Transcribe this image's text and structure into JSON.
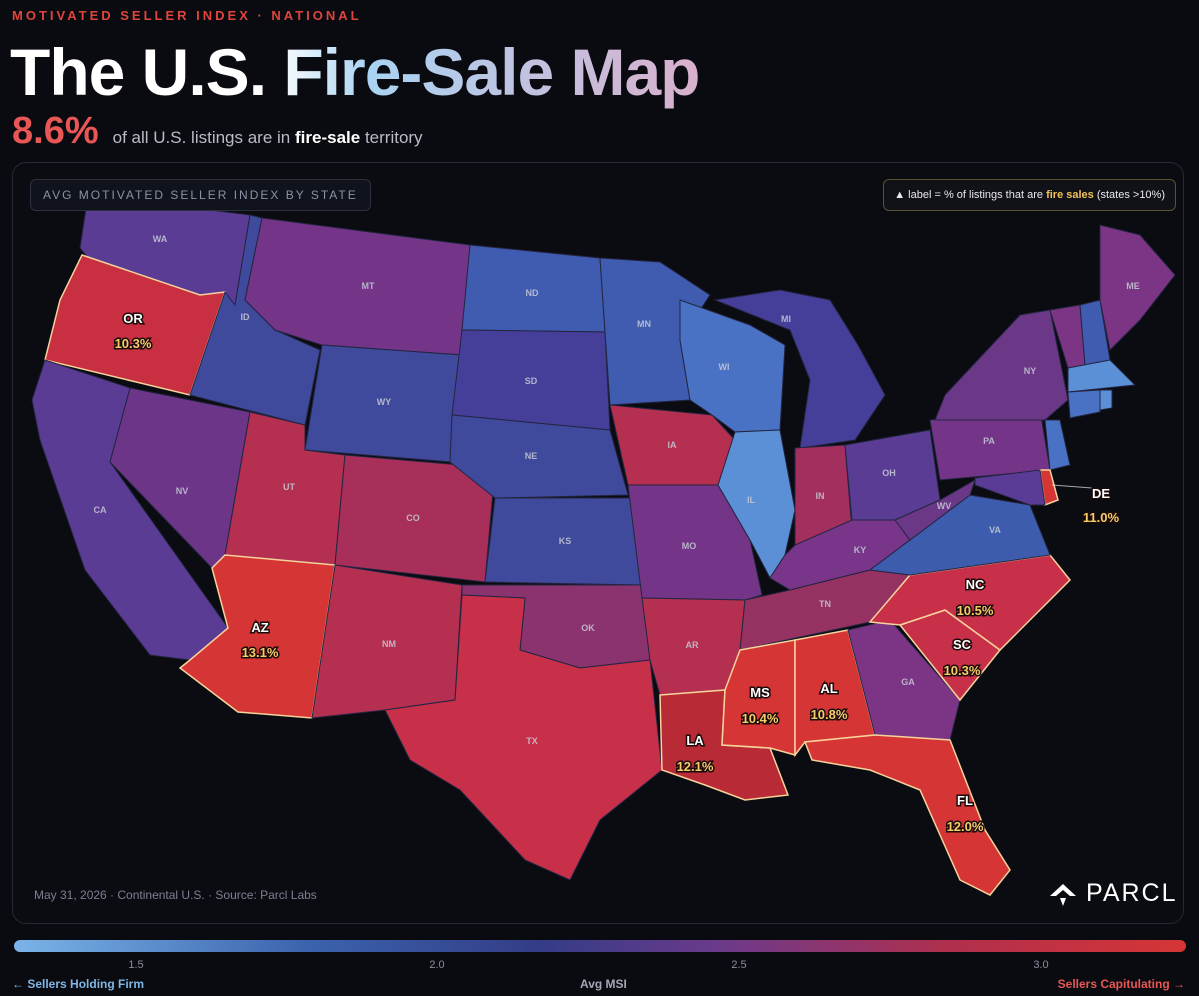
{
  "header": {
    "eyebrow": "MOTIVATED SELLER INDEX · NATIONAL",
    "title": "The U.S. Fire-Sale Map",
    "stat_value": "8.6%",
    "stat_text_pre": "of all U.S. listings are in",
    "stat_text_bold": "fire-sale",
    "stat_text_post": "territory"
  },
  "map": {
    "chip_label": "AVG MOTIVATED SELLER INDEX BY STATE",
    "legend_note_pre": "▲ label = % of listings that are",
    "legend_note_hl": "fire sales",
    "legend_note_post": "(states >10%)",
    "footnote": "May 31, 2026 · Continental U.S. · Source: Parcl Labs",
    "brand": "PARCL",
    "state_labels": {
      "WA": "WA",
      "ID": "ID",
      "MT": "MT",
      "ND": "ND",
      "MN": "MN",
      "WI": "WI",
      "MI": "MI",
      "ME": "ME",
      "NY": "NY",
      "WY": "WY",
      "SD": "SD",
      "NV": "NV",
      "CA": "CA",
      "UT": "UT",
      "CO": "CO",
      "NE": "NE",
      "IA": "IA",
      "IL": "IL",
      "IN": "IN",
      "OH": "OH",
      "PA": "PA",
      "WV": "WV",
      "VA": "VA",
      "KY": "KY",
      "KS": "KS",
      "MO": "MO",
      "OK": "OK",
      "TN": "TN",
      "AR": "AR",
      "NM": "NM",
      "TX": "TX",
      "GA": "GA"
    },
    "fire_sale_states": [
      {
        "state": "OR",
        "pct": "10.3%"
      },
      {
        "state": "AZ",
        "pct": "13.1%"
      },
      {
        "state": "LA",
        "pct": "12.1%"
      },
      {
        "state": "MS",
        "pct": "10.4%"
      },
      {
        "state": "AL",
        "pct": "10.8%"
      },
      {
        "state": "FL",
        "pct": "12.0%"
      },
      {
        "state": "NC",
        "pct": "10.5%"
      },
      {
        "state": "SC",
        "pct": "10.3%"
      },
      {
        "state": "DE",
        "pct": "11.0%"
      }
    ],
    "colors": {
      "holding_light": "#5b8fd6",
      "holding": "#3d5cae",
      "neutral": "#4a3d93",
      "leaning": "#7c3585",
      "hot": "#b02f52",
      "fire": "#d43535",
      "fire_outline": "#f6d39b"
    }
  },
  "scale": {
    "ticks": [
      "1.5",
      "2.0",
      "2.5",
      "3.0"
    ],
    "left_label": "← Sellers Holding Firm",
    "center_label": "Avg MSI",
    "right_label": "Sellers Capitulating →"
  }
}
